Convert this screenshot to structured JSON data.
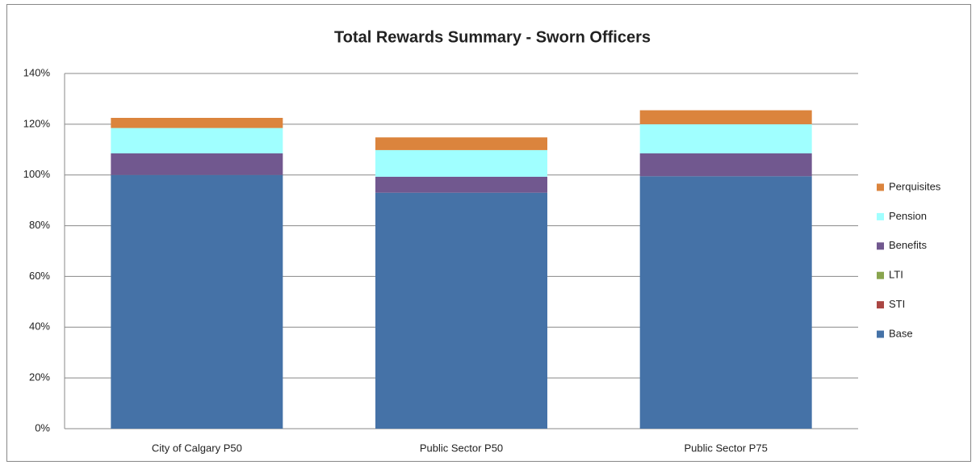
{
  "chart_data": {
    "type": "stacked_bar",
    "title": "Total Rewards Summary -  Sworn Officers",
    "categories": [
      "City of Calgary P50",
      "Public Sector P50",
      "Public Sector P75"
    ],
    "series": [
      {
        "name": "Base",
        "color": "#4572a7",
        "values": [
          100,
          93,
          99.5
        ]
      },
      {
        "name": "STI",
        "color": "#aa4643",
        "values": [
          0,
          0,
          0
        ]
      },
      {
        "name": "LTI",
        "color": "#89a54e",
        "values": [
          0,
          0,
          0
        ]
      },
      {
        "name": "Benefits",
        "color": "#71588f",
        "values": [
          8.5,
          6.3,
          9
        ]
      },
      {
        "name": "Pension",
        "color": "#a0ffff",
        "values": [
          10,
          10.5,
          11.5
        ]
      },
      {
        "name": "Perquisites",
        "color": "#db843d",
        "values": [
          4,
          5,
          5.5
        ]
      }
    ],
    "ylim": [
      0,
      140
    ],
    "yticks": [
      {
        "value": 0,
        "label": "0%"
      },
      {
        "value": 20,
        "label": "20%"
      },
      {
        "value": 40,
        "label": "40%"
      },
      {
        "value": 60,
        "label": "60%"
      },
      {
        "value": 80,
        "label": "80%"
      },
      {
        "value": 100,
        "label": "100%"
      },
      {
        "value": 120,
        "label": "120%"
      },
      {
        "value": 140,
        "label": "140%"
      }
    ],
    "grid": true,
    "legend": "right"
  }
}
